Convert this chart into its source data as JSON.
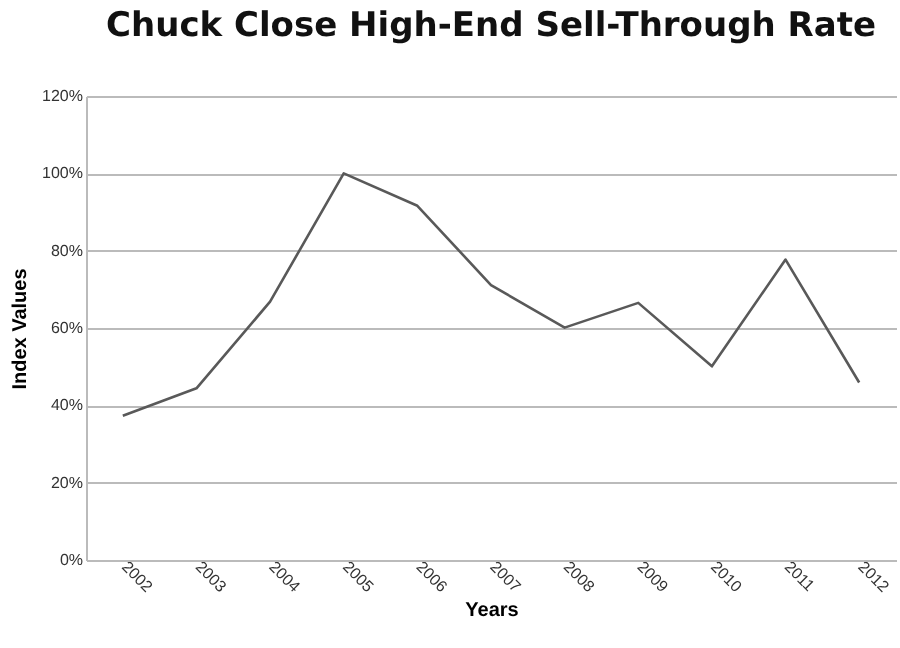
{
  "chart_data": {
    "type": "line",
    "title": "Chuck Close High-End Sell-Through Rate",
    "xlabel": "Years",
    "ylabel": "Index Values",
    "categories": [
      "2002",
      "2003",
      "2004",
      "2005",
      "2006",
      "2007",
      "2008",
      "2009",
      "2010",
      "2011",
      "2012"
    ],
    "series": [
      {
        "color": "#595959",
        "values": [
          37.3,
          44.4,
          66.8,
          100,
          91.6,
          71.1,
          60.1,
          66.5,
          50.1,
          77.7,
          45.9
        ]
      }
    ],
    "ylim": [
      0,
      120
    ],
    "yticks": [
      {
        "value": 0,
        "label": "0%"
      },
      {
        "value": 20,
        "label": "20%"
      },
      {
        "value": 40,
        "label": "40%"
      },
      {
        "value": 60,
        "label": "60%"
      },
      {
        "value": 80,
        "label": "80%"
      },
      {
        "value": 100,
        "label": "100%"
      },
      {
        "value": 120,
        "label": "120%"
      }
    ],
    "grid": "y",
    "marker": "none",
    "line_style": "solid"
  }
}
